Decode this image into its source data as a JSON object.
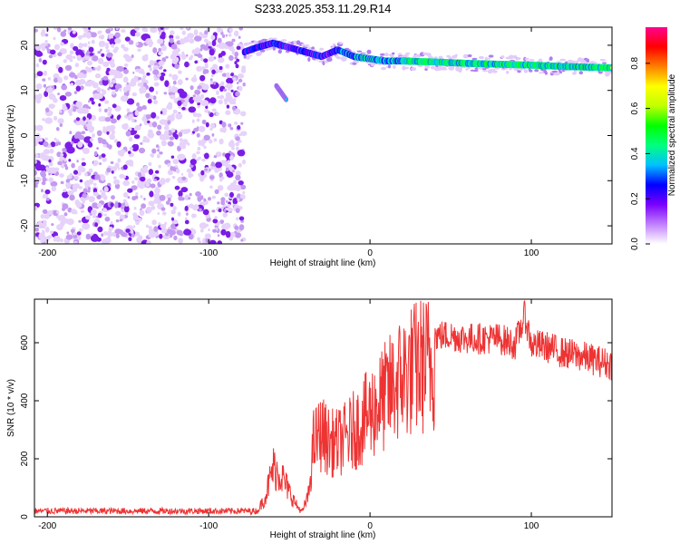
{
  "figure": {
    "title": "S233.2025.353.11.29.R14"
  },
  "chart_data": [
    {
      "type": "heatmap",
      "name": "spectrogram",
      "xlabel": "Height of straight line (km)",
      "ylabel": "Frequency (Hz)",
      "xlim": [
        -208,
        150
      ],
      "ylim": [
        -24,
        24
      ],
      "xticks": [
        -200,
        -100,
        0,
        100
      ],
      "yticks": [
        -20,
        -10,
        0,
        10,
        20
      ],
      "noise_region_x": [
        -208,
        -78
      ],
      "signal_ridge": {
        "x": [
          -78,
          -70,
          -60,
          -50,
          -40,
          -30,
          -20,
          -10,
          0,
          10,
          20,
          40,
          60,
          80,
          100,
          120,
          150
        ],
        "freq_hz": [
          18.5,
          19.5,
          20.5,
          19.5,
          18.5,
          17.5,
          19.0,
          17.5,
          17.0,
          16.5,
          16.5,
          16.3,
          16.0,
          15.8,
          15.6,
          15.3,
          15.0
        ]
      },
      "secondary_feature": {
        "x": [
          -58,
          -52
        ],
        "freq_hz": [
          11,
          8
        ]
      },
      "colorbar": {
        "label": "Normalized spectral amplitude",
        "ticks": [
          "0.0",
          "0.2",
          "0.4",
          "0.6",
          "0.8"
        ],
        "range": [
          0,
          0.96
        ],
        "colors": [
          "#ffffff",
          "#c080ff",
          "#7a00ff",
          "#0000ff",
          "#00c0ff",
          "#00ff80",
          "#00ff00",
          "#c0ff00",
          "#ffff00",
          "#ff8000",
          "#ff0000",
          "#ff0090"
        ]
      }
    },
    {
      "type": "line",
      "name": "snr",
      "xlabel": "Height of straight line (km)",
      "ylabel": "SNR (10 * v/v)",
      "xlim": [
        -208,
        150
      ],
      "ylim": [
        0,
        750
      ],
      "xticks": [
        -200,
        -100,
        0,
        100
      ],
      "yticks": [
        0,
        200,
        400,
        600
      ],
      "color": "#ee3333",
      "series": {
        "x": [
          -208,
          -180,
          -150,
          -120,
          -90,
          -70,
          -65,
          -60,
          -55,
          -50,
          -45,
          -42,
          -38,
          -35,
          -30,
          -25,
          -20,
          -15,
          -10,
          -5,
          0,
          10,
          20,
          30,
          40,
          50,
          60,
          70,
          80,
          90,
          96,
          100,
          110,
          120,
          130,
          140,
          150
        ],
        "y": [
          20,
          20,
          20,
          20,
          20,
          20,
          80,
          200,
          170,
          100,
          40,
          20,
          90,
          300,
          340,
          300,
          300,
          320,
          350,
          380,
          420,
          490,
          570,
          610,
          630,
          630,
          620,
          620,
          620,
          600,
          700,
          600,
          590,
          570,
          560,
          545,
          530
        ]
      }
    }
  ]
}
